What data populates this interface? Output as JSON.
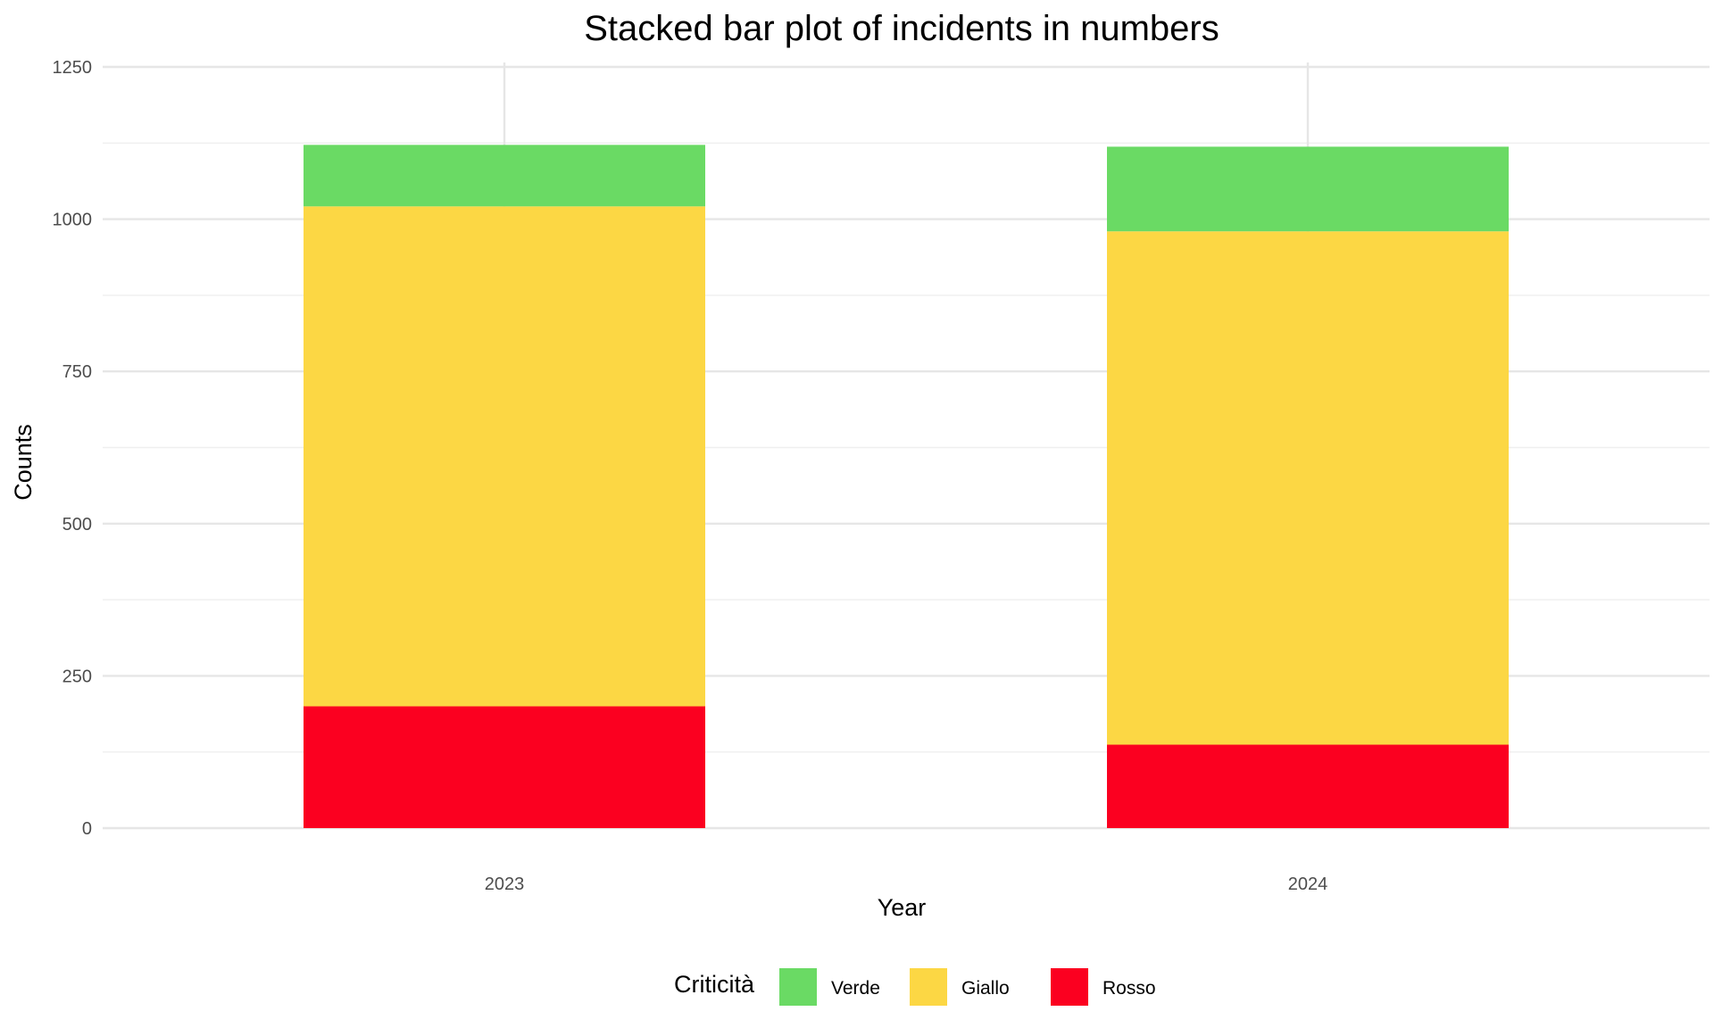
{
  "chart_data": {
    "type": "bar",
    "stacked": true,
    "title": "Stacked bar plot of incidents in numbers",
    "xlabel": "Year",
    "ylabel": "Counts",
    "categories": [
      "2023",
      "2024"
    ],
    "series": [
      {
        "name": "Rosso",
        "color": "#FB0020",
        "values": [
          200,
          137
        ]
      },
      {
        "name": "Giallo",
        "color": "#FCD744",
        "values": [
          821,
          843
        ]
      },
      {
        "name": "Verde",
        "color": "#6ADA64",
        "values": [
          101,
          139
        ]
      }
    ],
    "ylim": [
      0,
      1250
    ],
    "yticks": [
      0,
      250,
      500,
      750,
      1000,
      1250
    ],
    "grid": true,
    "legend": {
      "title": "Criticità",
      "position": "bottom",
      "order": [
        "Verde",
        "Giallo",
        "Rosso"
      ]
    }
  }
}
